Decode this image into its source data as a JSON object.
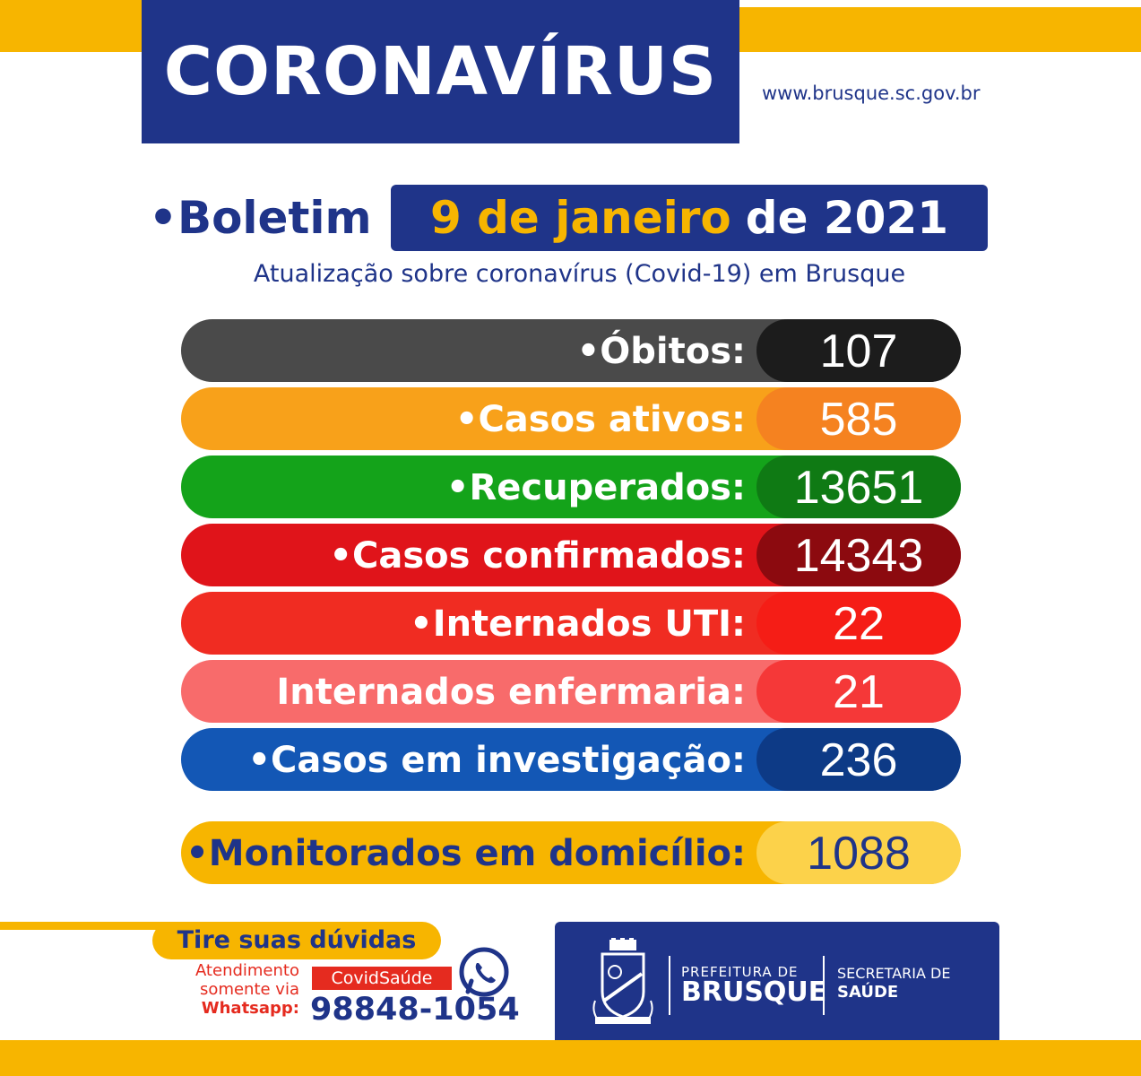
{
  "header": {
    "title": "CORONAVÍRUS",
    "url": "www.brusque.sc.gov.br"
  },
  "bulletin": {
    "label": "•Boletim",
    "date_highlight": "9 de janeiro",
    "date_rest": "de 2021",
    "subtitle": "Atualização sobre coronavírus (Covid-19) em Brusque"
  },
  "stats": [
    {
      "label": "•Óbitos:",
      "value": "107",
      "bar_color": "#4a4a4a",
      "value_color": "#1c1c1c"
    },
    {
      "label": "•Casos ativos:",
      "value": "585",
      "bar_color": "#f8a11a",
      "value_color": "#f58220"
    },
    {
      "label": "•Recuperados:",
      "value": "13651",
      "bar_color": "#14a31a",
      "value_color": "#0f7a14"
    },
    {
      "label": "•Casos confirmados:",
      "value": "14343",
      "bar_color": "#e0141a",
      "value_color": "#8c0a0f"
    },
    {
      "label": "•Internados UTI:",
      "value": "22",
      "bar_color": "#f02c22",
      "value_color": "#f51d16"
    },
    {
      "label": "Internados enfermaria:",
      "value": "21",
      "bar_color": "#f86b6b",
      "value_color": "#f53838"
    },
    {
      "label": "•Casos em investigação:",
      "value": "236",
      "bar_color": "#1357b5",
      "value_color": "#0d3a86"
    }
  ],
  "monitored": {
    "label": "•Monitorados em domicílio:",
    "value": "1088",
    "bar_color": "#f7b500",
    "value_color": "#fcd24a"
  },
  "contact": {
    "heading": "Tire suas dúvidas",
    "line1": "Atendimento",
    "line2": "somente via",
    "line3": "Whatsapp:",
    "tag": "CovidSaúde",
    "phone": "98848-1054",
    "icon": "whatsapp-icon"
  },
  "footer": {
    "pref_small": "PREFEITURA DE",
    "pref_big": "BRUSQUE",
    "sec_small": "SECRETARIA DE",
    "sec_big": "SAÚDE",
    "crest_text": "BRUSQUE",
    "icon": "city-crest"
  }
}
